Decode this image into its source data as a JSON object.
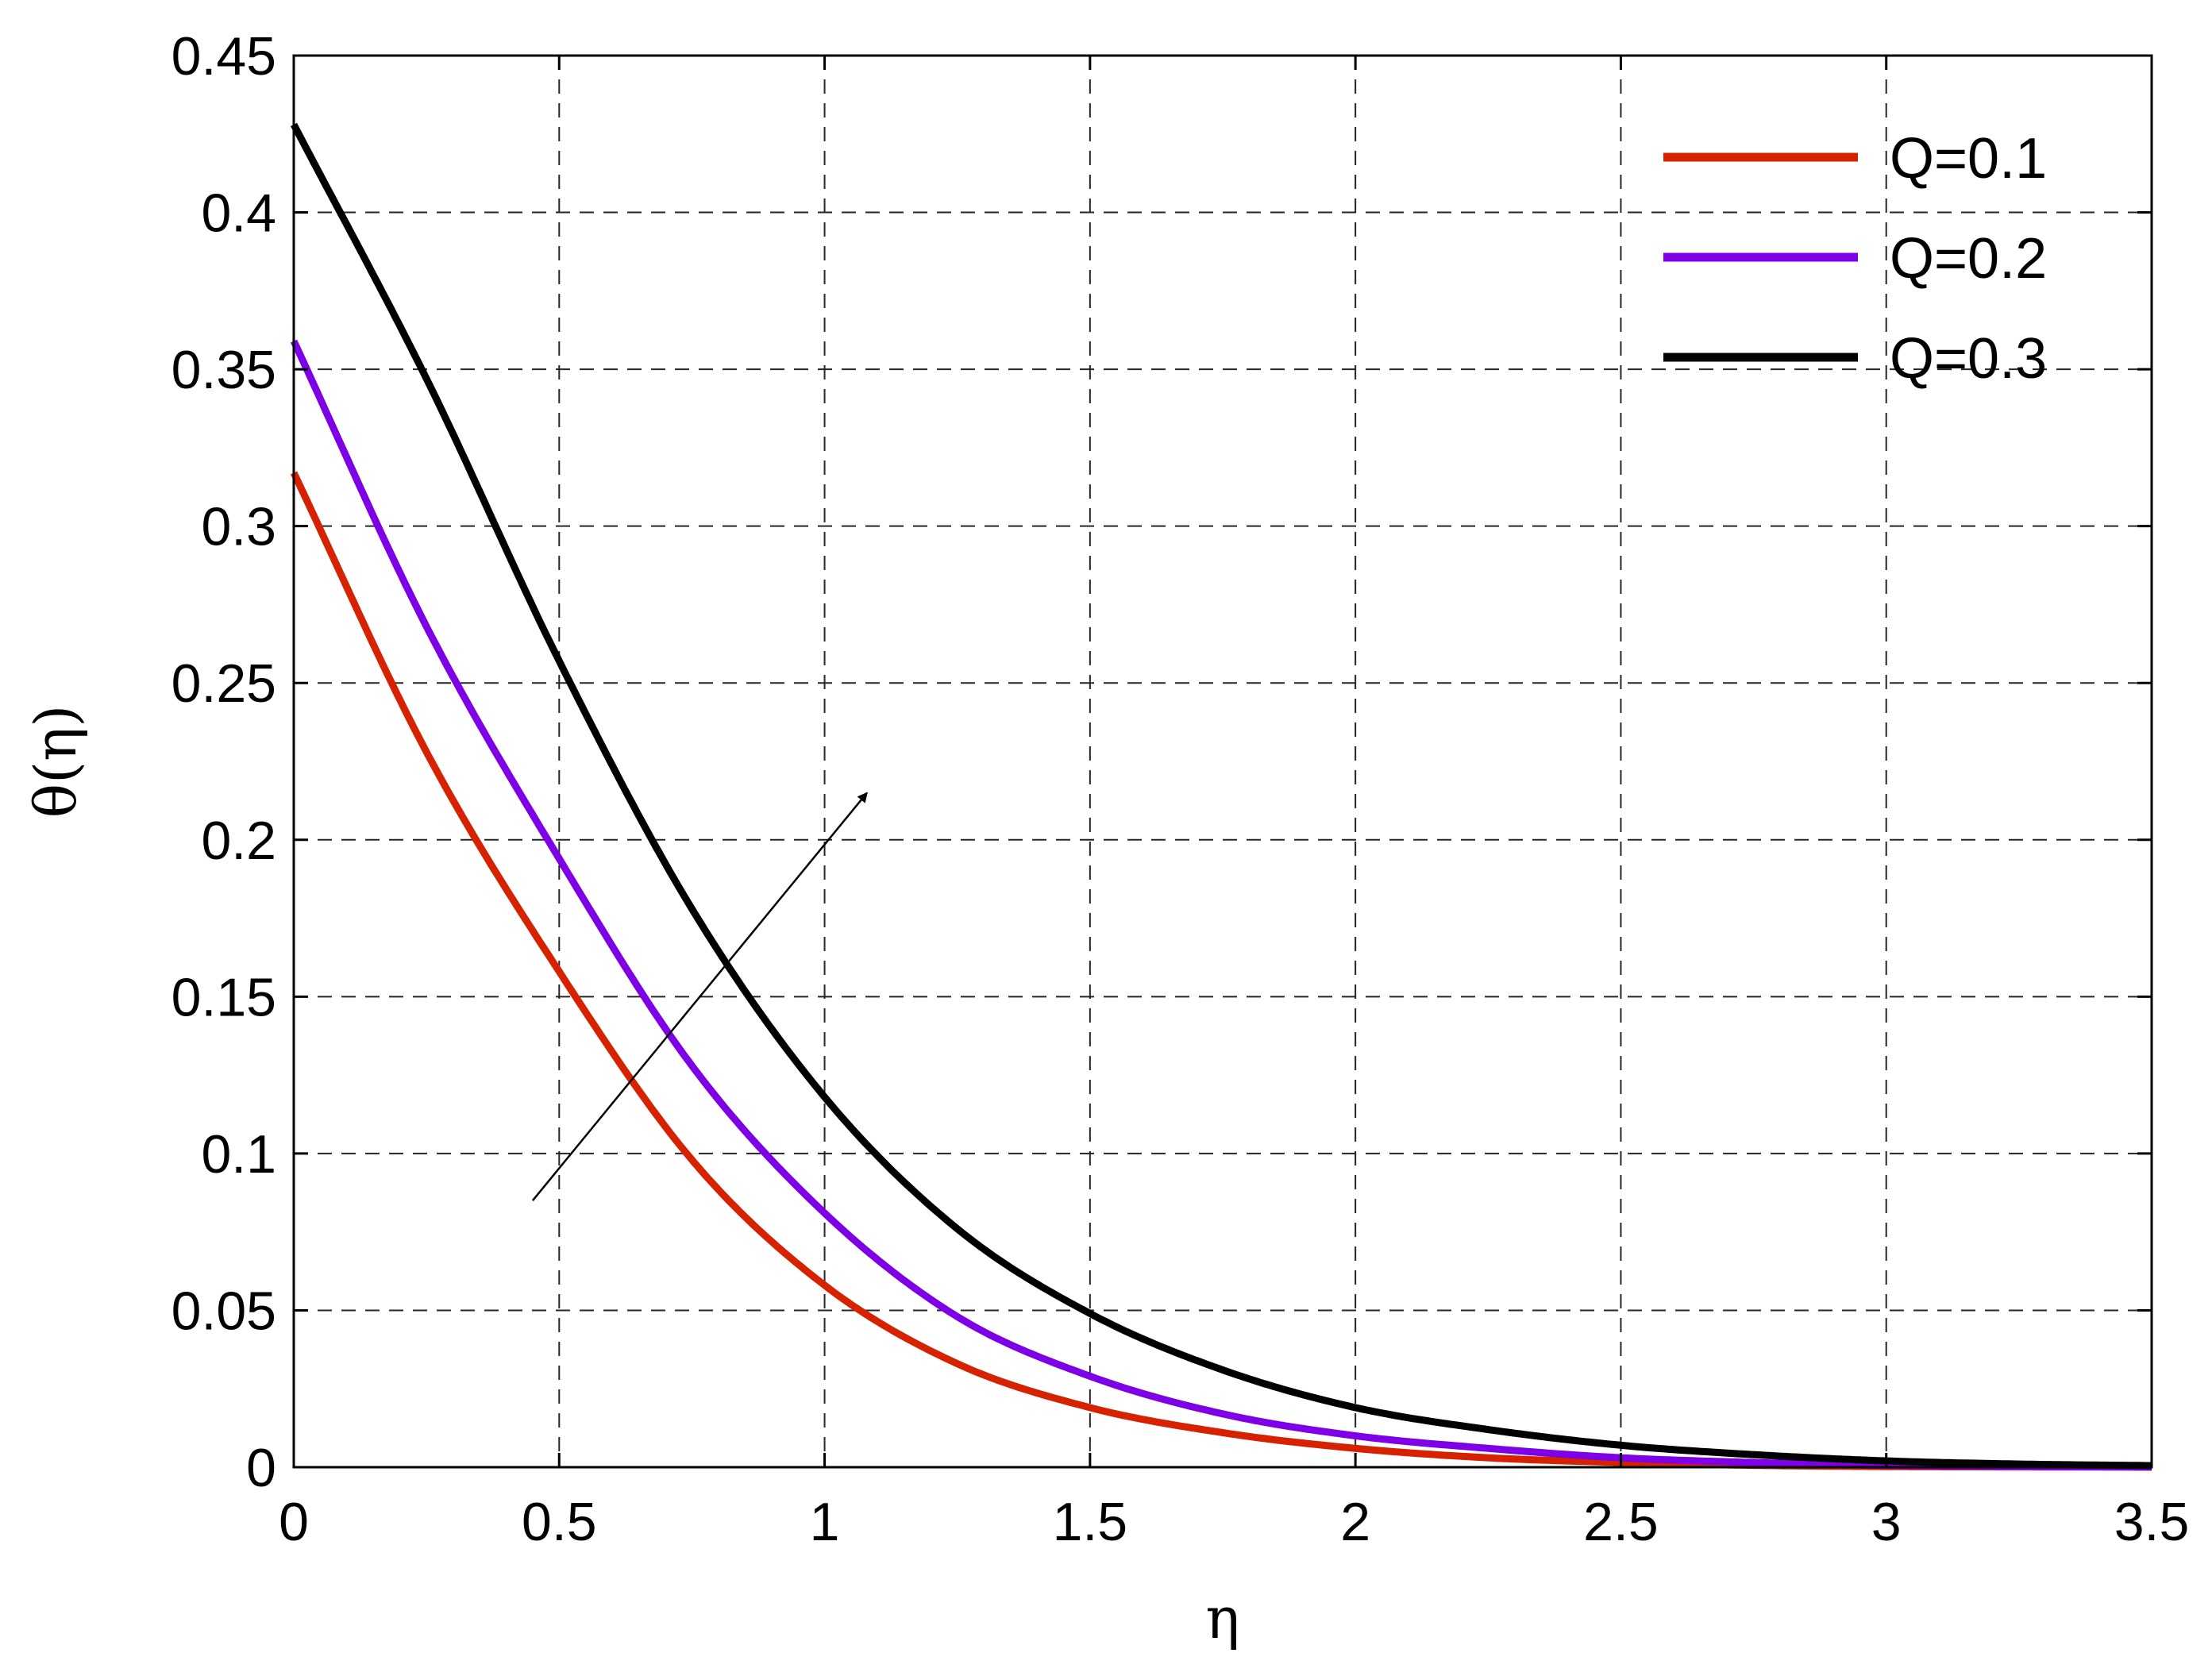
{
  "chart_data": {
    "type": "line",
    "xlabel": "η",
    "ylabel": "θ(η)",
    "xlim": [
      0,
      3.5
    ],
    "ylim": [
      0,
      0.45
    ],
    "xticks": [
      "0",
      "0.5",
      "1",
      "1.5",
      "2",
      "2.5",
      "3",
      "3.5"
    ],
    "yticks": [
      "0",
      "0.05",
      "0.1",
      "0.15",
      "0.2",
      "0.25",
      "0.3",
      "0.35",
      "0.4",
      "0.45"
    ],
    "grid": true,
    "legend_position": "top-right",
    "x": [
      0,
      0.25,
      0.5,
      0.75,
      1,
      1.25,
      1.5,
      1.75,
      2,
      2.25,
      2.5,
      2.75,
      3,
      3.25,
      3.5
    ],
    "series": [
      {
        "name": "Q=0.1",
        "color": "#d62200",
        "values": [
          0.317,
          0.228,
          0.158,
          0.098,
          0.058,
          0.033,
          0.019,
          0.011,
          0.006,
          0.003,
          0.0015,
          0.0006,
          0.0002,
          0.0001,
          0.0
        ]
      },
      {
        "name": "Q=0.2",
        "color": "#7d00e6",
        "values": [
          0.359,
          0.268,
          0.194,
          0.128,
          0.081,
          0.048,
          0.029,
          0.017,
          0.01,
          0.006,
          0.003,
          0.0015,
          0.0006,
          0.0002,
          0.0001
        ]
      },
      {
        "name": "Q=0.3",
        "color": "#000000",
        "values": [
          0.428,
          0.347,
          0.257,
          0.178,
          0.118,
          0.076,
          0.049,
          0.031,
          0.019,
          0.012,
          0.007,
          0.004,
          0.002,
          0.001,
          0.0005
        ]
      }
    ],
    "annotation": {
      "type": "arrow",
      "from": [
        0.45,
        0.085
      ],
      "to": [
        1.08,
        0.215
      ],
      "meaning": "increasing Q"
    }
  }
}
